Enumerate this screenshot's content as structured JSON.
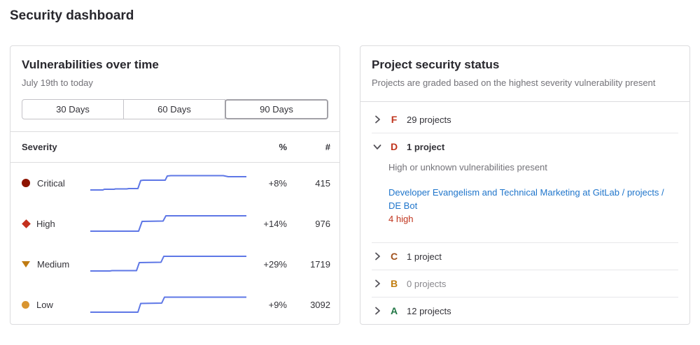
{
  "page": {
    "title": "Security dashboard"
  },
  "colors": {
    "spark_line": "#5e77e6",
    "link": "#1f75cb",
    "severity_critical": "#8d1300",
    "severity_high": "#c4301d",
    "severity_medium": "#bf7b12",
    "severity_low": "#d99530",
    "grade_f": "#c0341d",
    "grade_d": "#c0341d",
    "grade_c": "#a0511c",
    "grade_b": "#c17d10",
    "grade_a": "#217645",
    "vuln_count_red": "#c0341d"
  },
  "vuln_card": {
    "title": "Vulnerabilities over time",
    "subtitle": "July 19th to today",
    "ranges": [
      {
        "label": "30 Days",
        "selected": false
      },
      {
        "label": "60 Days",
        "selected": false
      },
      {
        "label": "90 Days",
        "selected": true
      }
    ],
    "table": {
      "headers": {
        "severity": "Severity",
        "percent": "%",
        "count": "#"
      },
      "rows": [
        {
          "severity": "Critical",
          "icon": "severity-critical-icon",
          "percent": "+8%",
          "count": "415"
        },
        {
          "severity": "High",
          "icon": "severity-high-icon",
          "percent": "+14%",
          "count": "976"
        },
        {
          "severity": "Medium",
          "icon": "severity-medium-icon",
          "percent": "+29%",
          "count": "1719"
        },
        {
          "severity": "Low",
          "icon": "severity-low-icon",
          "percent": "+9%",
          "count": "3092"
        }
      ]
    }
  },
  "status_card": {
    "title": "Project security status",
    "subtitle": "Projects are graded based on the highest severity vulnerability present",
    "grades": [
      {
        "letter": "F",
        "text": "29 projects",
        "expanded": false
      },
      {
        "letter": "D",
        "text": "1 project",
        "expanded": true,
        "description": "High or unknown vulnerabilities present",
        "project_link": "Developer Evangelism and Technical Marketing at GitLab / projects / DE Bot",
        "vulnerability_summary": "4 high"
      },
      {
        "letter": "C",
        "text": "1 project",
        "expanded": false
      },
      {
        "letter": "B",
        "text": "0 projects",
        "expanded": false
      },
      {
        "letter": "A",
        "text": "12 projects",
        "expanded": false
      }
    ]
  },
  "chart_data": [
    {
      "type": "line",
      "name": "Critical",
      "title": "Vulnerabilities over time",
      "period": "July 19th to today (90 Days)",
      "change_percent": "+8%",
      "latest_count": 415,
      "trend": "stepwise increase with two major jumps, slight dip at end",
      "polyline": [
        [
          0,
          27
        ],
        [
          18,
          27
        ],
        [
          20,
          26
        ],
        [
          34,
          26
        ],
        [
          36,
          25.5
        ],
        [
          52,
          25.5
        ],
        [
          55,
          25
        ],
        [
          68,
          25
        ],
        [
          72,
          13.5
        ],
        [
          76,
          13
        ],
        [
          107,
          13
        ],
        [
          110,
          7
        ],
        [
          115,
          6.5
        ],
        [
          190,
          6.5
        ],
        [
          197,
          8
        ],
        [
          223,
          8
        ]
      ]
    },
    {
      "type": "line",
      "name": "High",
      "period": "July 19th to today (90 Days)",
      "change_percent": "+14%",
      "latest_count": 976,
      "trend": "flat then two step increases, flat high plateau",
      "polyline": [
        [
          0,
          28
        ],
        [
          69,
          28
        ],
        [
          74,
          14
        ],
        [
          104,
          13.5
        ],
        [
          108,
          6
        ],
        [
          223,
          6
        ]
      ]
    },
    {
      "type": "line",
      "name": "Medium",
      "period": "July 19th to today (90 Days)",
      "change_percent": "+29%",
      "latest_count": 1719,
      "trend": "flat then two step increases, flat high plateau",
      "polyline": [
        [
          0,
          27
        ],
        [
          28,
          27
        ],
        [
          31,
          26.5
        ],
        [
          66,
          26.5
        ],
        [
          70,
          15
        ],
        [
          101,
          14.5
        ],
        [
          105,
          6
        ],
        [
          223,
          6
        ]
      ]
    },
    {
      "type": "line",
      "name": "Low",
      "period": "July 19th to today (90 Days)",
      "change_percent": "+9%",
      "latest_count": 3092,
      "trend": "flat then two step increases, flat high plateau",
      "polyline": [
        [
          0,
          28
        ],
        [
          68,
          28
        ],
        [
          72,
          15.5
        ],
        [
          102,
          15
        ],
        [
          106,
          6.5
        ],
        [
          223,
          6.5
        ]
      ]
    }
  ]
}
